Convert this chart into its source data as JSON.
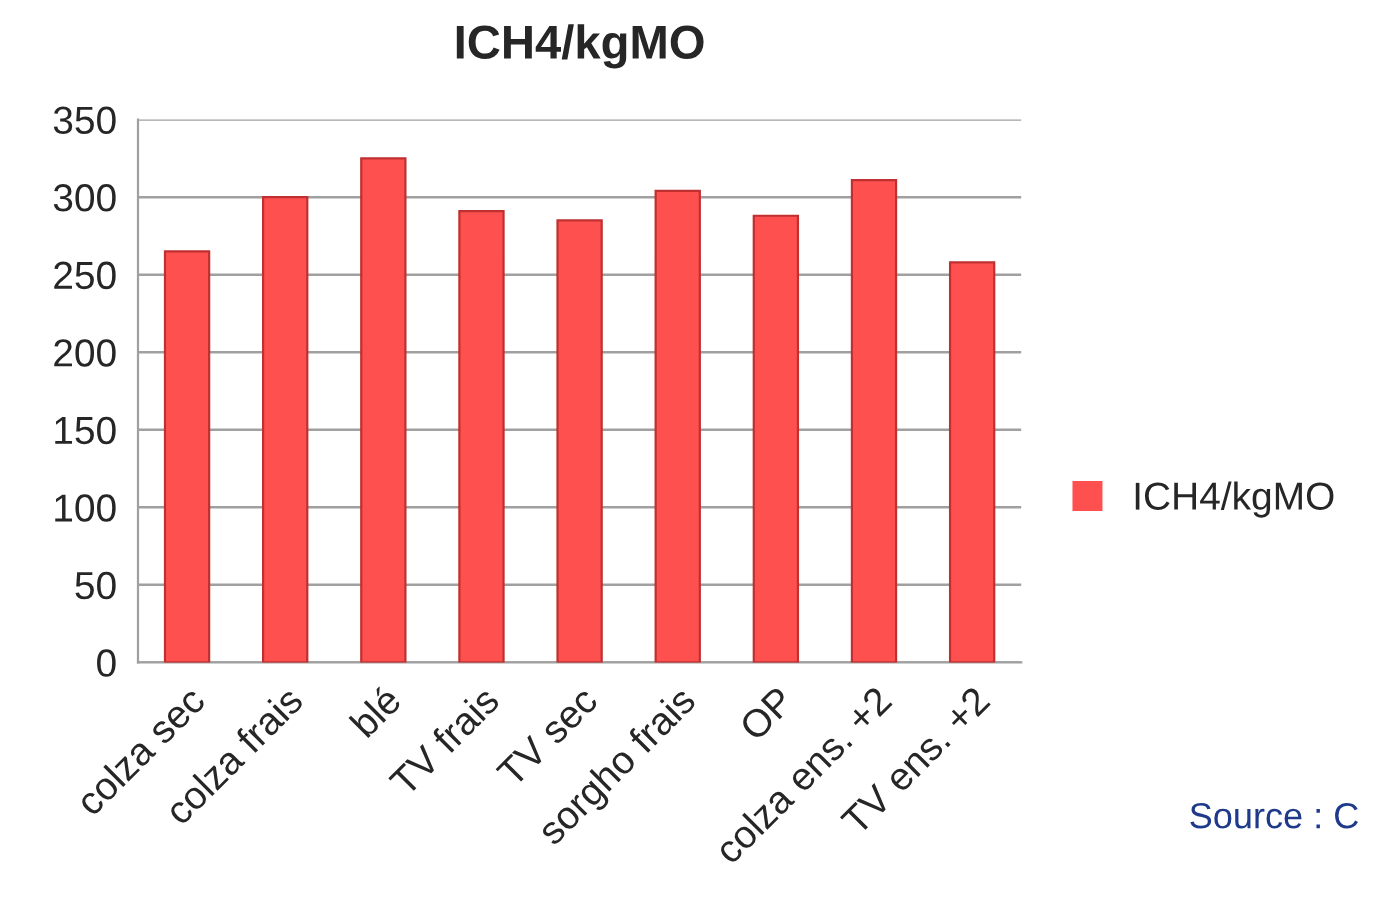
{
  "chart_data": {
    "type": "bar",
    "title": "ICH4/kgMO",
    "categories": [
      "colza sec",
      "colza frais",
      "blé",
      "TV frais",
      "TV sec",
      "sorgho frais",
      "OP",
      "colza ens. +2",
      "TV ens. +2"
    ],
    "series": [
      {
        "name": "ICH4/kgMO",
        "color": "#ff5050",
        "values": [
          265,
          300,
          325,
          291,
          285,
          304,
          288,
          311,
          258
        ]
      }
    ],
    "ylim": [
      0,
      350
    ],
    "yticks": [
      0,
      50,
      100,
      150,
      200,
      250,
      300,
      350
    ],
    "grid": "y",
    "legend": "right",
    "annotations": [
      "Source : C"
    ]
  }
}
